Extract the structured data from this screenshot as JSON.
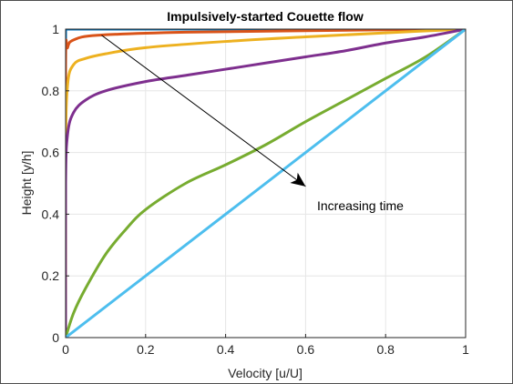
{
  "chart_data": {
    "type": "line",
    "title": "Impulsively-started Couette flow",
    "xlabel": "Velocity [u/U]",
    "ylabel": "Height [y/h]",
    "xlim": [
      0,
      1
    ],
    "ylim": [
      0,
      1
    ],
    "xticks": [
      "0",
      "0.2",
      "0.4",
      "0.6",
      "0.8",
      "1"
    ],
    "yticks": [
      "0",
      "0.2",
      "0.4",
      "0.6",
      "0.8",
      "1"
    ],
    "grid": true,
    "legend": "none",
    "annotation": {
      "text": "Increasing time",
      "arrow_from": [
        0.09,
        0.98
      ],
      "arrow_to": [
        0.6,
        0.49
      ]
    },
    "series": [
      {
        "color": "#0072BD",
        "x": [
          0,
          0,
          0.01,
          1
        ],
        "y": [
          0,
          0.99,
          1.0,
          1.0
        ]
      },
      {
        "color": "#D95319",
        "x": [
          0,
          0,
          0.005,
          0.02,
          0.08,
          0.3,
          0.6,
          1
        ],
        "y": [
          0,
          0.88,
          0.94,
          0.965,
          0.98,
          0.99,
          0.995,
          1.0
        ]
      },
      {
        "color": "#EDB120",
        "x": [
          0,
          0,
          0.005,
          0.02,
          0.05,
          0.1,
          0.2,
          0.4,
          0.6,
          0.8,
          1
        ],
        "y": [
          0,
          0.6,
          0.82,
          0.885,
          0.905,
          0.92,
          0.94,
          0.96,
          0.975,
          0.988,
          1.0
        ]
      },
      {
        "color": "#7E2F8E",
        "x": [
          0,
          0,
          0.005,
          0.02,
          0.05,
          0.1,
          0.2,
          0.3,
          0.4,
          0.5,
          0.6,
          0.7,
          0.8,
          0.9,
          1
        ],
        "y": [
          0,
          0.5,
          0.66,
          0.73,
          0.77,
          0.8,
          0.83,
          0.85,
          0.87,
          0.89,
          0.91,
          0.93,
          0.955,
          0.975,
          1.0
        ]
      },
      {
        "color": "#77AC30",
        "x": [
          0,
          0.02,
          0.05,
          0.1,
          0.15,
          0.2,
          0.3,
          0.4,
          0.5,
          0.6,
          0.7,
          0.8,
          0.9,
          1
        ],
        "y": [
          0,
          0.08,
          0.16,
          0.27,
          0.35,
          0.415,
          0.5,
          0.56,
          0.625,
          0.7,
          0.77,
          0.84,
          0.91,
          1.0
        ]
      },
      {
        "color": "#4DBEEE",
        "x": [
          0,
          1
        ],
        "y": [
          0,
          1
        ]
      }
    ]
  }
}
